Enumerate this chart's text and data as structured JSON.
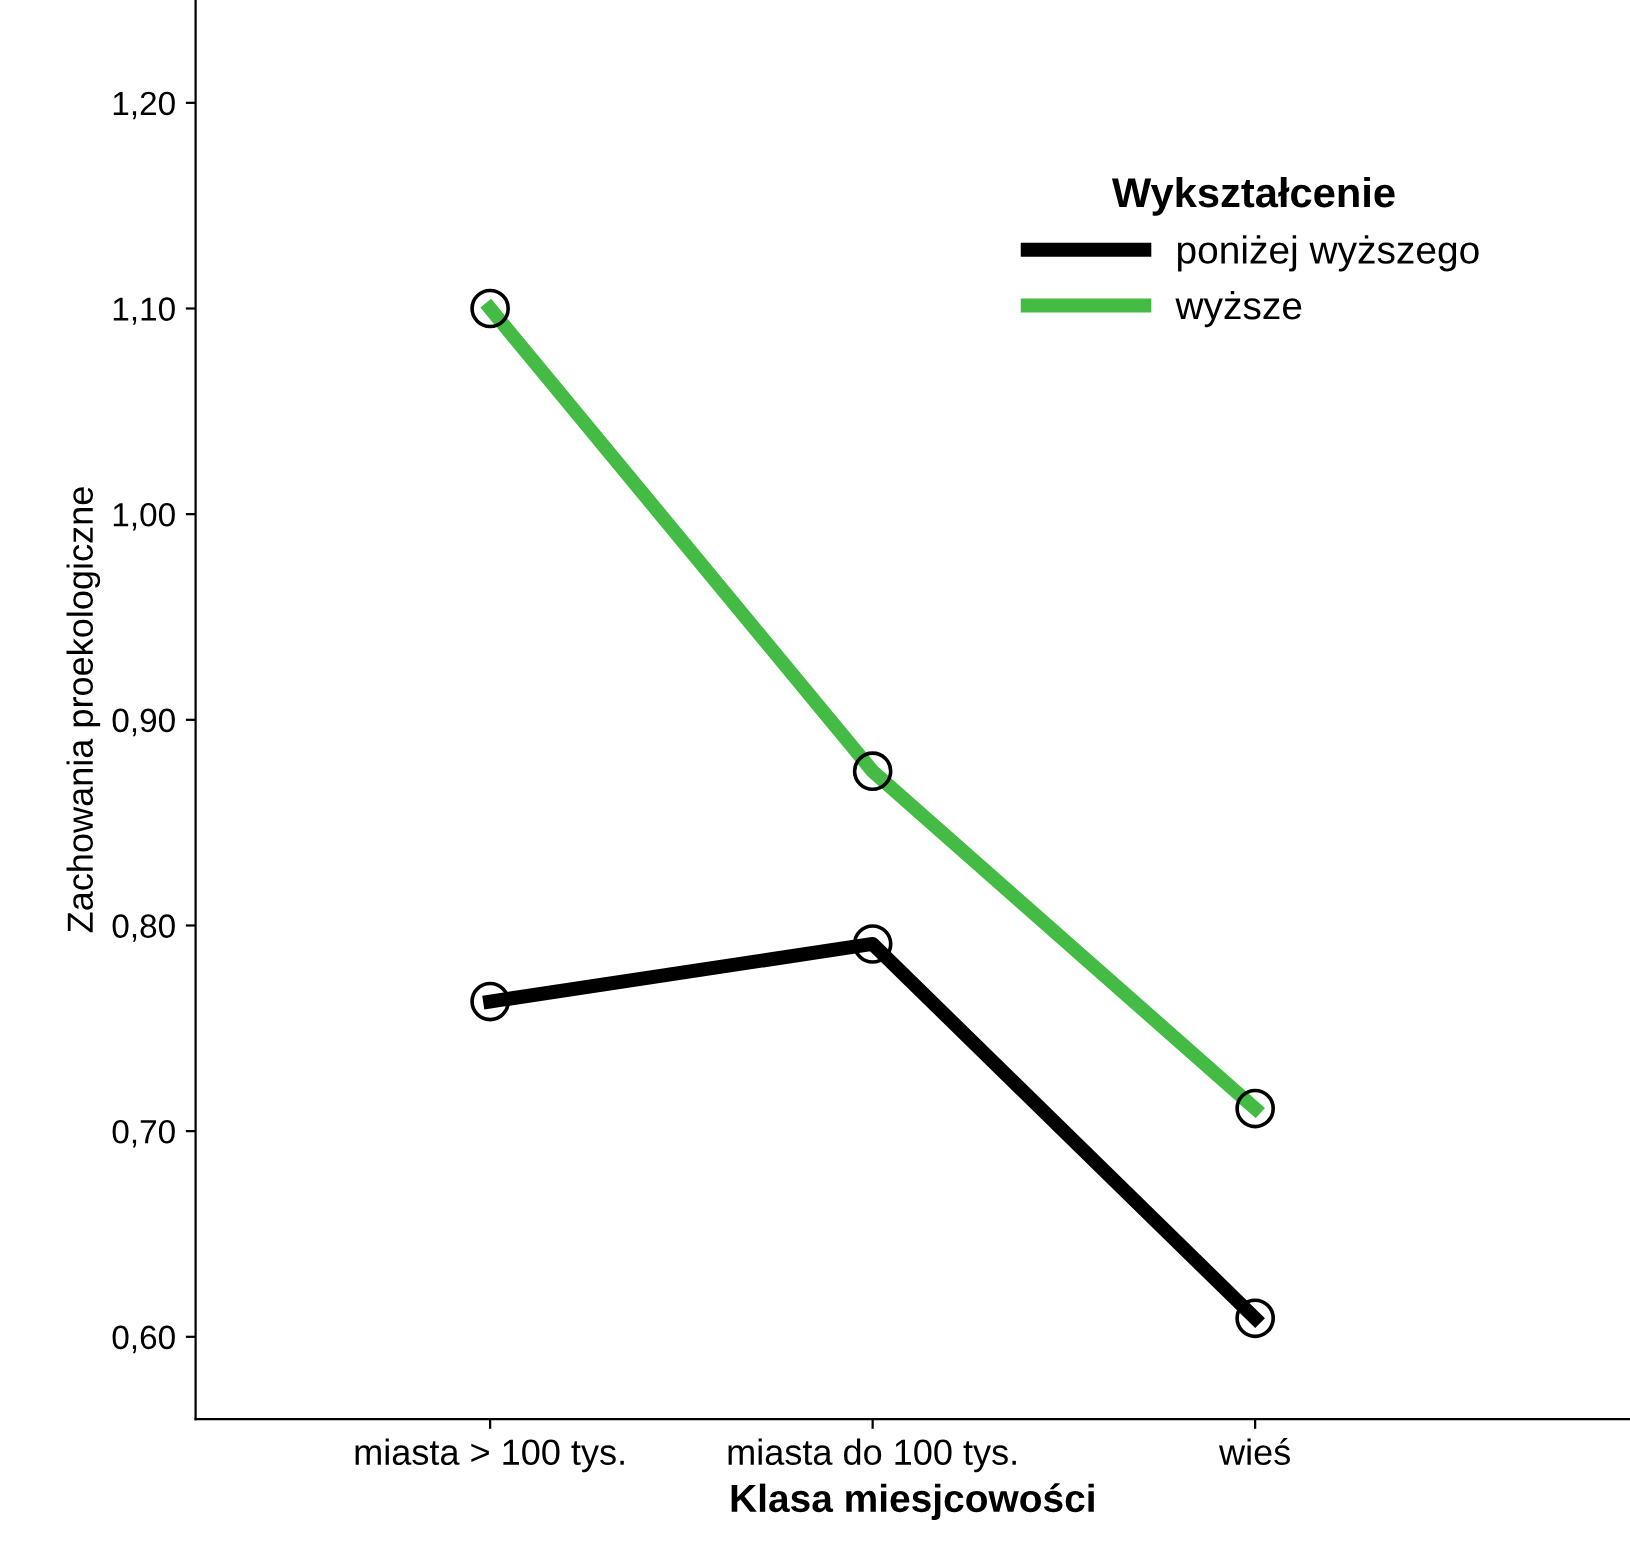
{
  "chart_data": {
    "type": "line",
    "xlabel": "Klasa miesjcowości",
    "ylabel": "Zachowania proekologiczne",
    "legend_title": "Wykształcenie",
    "categories": [
      "miasta > 100 tys.",
      "miasta do 100 tys.",
      "wieś"
    ],
    "series": [
      {
        "name": "poniżej wyższego",
        "color": "#000000",
        "values": [
          0.763,
          0.791,
          0.609
        ]
      },
      {
        "name": "wyższe",
        "color": "#44bb44",
        "values": [
          1.1,
          0.875,
          0.711
        ]
      }
    ],
    "ylim": [
      0.56,
      1.25
    ],
    "yticks": [
      {
        "value": 0.6,
        "label": "0,60"
      },
      {
        "value": 0.7,
        "label": "0,70"
      },
      {
        "value": 0.8,
        "label": "0,80"
      },
      {
        "value": 0.9,
        "label": "0,90"
      },
      {
        "value": 1.0,
        "label": "1,00"
      },
      {
        "value": 1.1,
        "label": "1,10"
      },
      {
        "value": 1.2,
        "label": "1,20"
      }
    ],
    "marker": "circle",
    "line_style": "solid",
    "legend": "top right",
    "grid": false
  }
}
